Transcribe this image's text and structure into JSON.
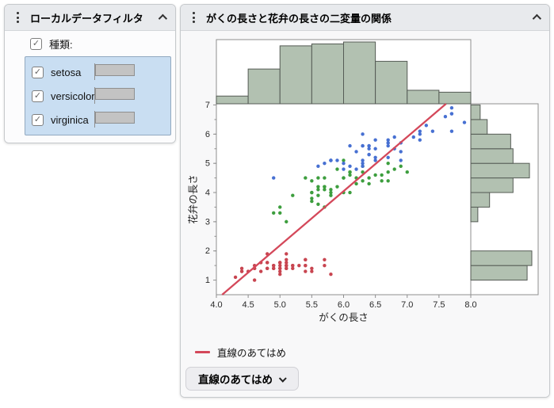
{
  "filter_panel": {
    "title": "ローカルデータフィルタ",
    "field": {
      "label": "種類:",
      "checked": true
    },
    "values": [
      {
        "label": "setosa",
        "checked": true,
        "count": 50
      },
      {
        "label": "versicolor",
        "checked": true,
        "count": 50
      },
      {
        "label": "virginica",
        "checked": true,
        "count": 50
      }
    ],
    "max_count": 50,
    "selection_color": "#c9def2"
  },
  "report_panel": {
    "title": "がくの長さと花弁の長さの二変量の関係",
    "legend": {
      "label": "直線のあてはめ",
      "color": "#d4485a"
    },
    "fit_button": {
      "label": "直線のあてはめ"
    }
  },
  "chart_data": {
    "type": "scatter",
    "title": "がくの長さと花弁の長さの二変量の関係",
    "xlabel": "がくの長さ",
    "ylabel": "花弁の長さ",
    "xlim": [
      4.0,
      8.0
    ],
    "ylim": [
      0.5,
      7.04
    ],
    "x_ticks": [
      4.0,
      4.5,
      5.0,
      5.5,
      6.0,
      6.5,
      7.0,
      7.5,
      8.0
    ],
    "y_ticks": [
      1,
      2,
      3,
      4,
      5,
      6,
      7
    ],
    "grid": false,
    "legend_position": "bottom-left",
    "frame_color": "#8f8f8f",
    "series": [
      {
        "name": "setosa",
        "color": "#c84550",
        "points": [
          [
            5.1,
            1.4
          ],
          [
            4.9,
            1.4
          ],
          [
            4.7,
            1.3
          ],
          [
            4.6,
            1.5
          ],
          [
            5.0,
            1.4
          ],
          [
            5.4,
            1.7
          ],
          [
            4.6,
            1.4
          ],
          [
            5.0,
            1.5
          ],
          [
            4.4,
            1.4
          ],
          [
            4.9,
            1.5
          ],
          [
            5.4,
            1.5
          ],
          [
            4.8,
            1.6
          ],
          [
            4.8,
            1.4
          ],
          [
            4.3,
            1.1
          ],
          [
            5.8,
            1.2
          ],
          [
            5.7,
            1.5
          ],
          [
            5.4,
            1.3
          ],
          [
            5.1,
            1.4
          ],
          [
            5.7,
            1.7
          ],
          [
            5.1,
            1.5
          ],
          [
            5.4,
            1.7
          ],
          [
            5.1,
            1.5
          ],
          [
            4.6,
            1.0
          ],
          [
            5.1,
            1.7
          ],
          [
            4.8,
            1.9
          ],
          [
            5.0,
            1.6
          ],
          [
            5.0,
            1.6
          ],
          [
            5.2,
            1.5
          ],
          [
            5.2,
            1.4
          ],
          [
            4.7,
            1.6
          ],
          [
            4.8,
            1.6
          ],
          [
            5.4,
            1.5
          ],
          [
            5.2,
            1.5
          ],
          [
            5.5,
            1.4
          ],
          [
            4.9,
            1.5
          ],
          [
            5.0,
            1.2
          ],
          [
            5.5,
            1.3
          ],
          [
            4.9,
            1.4
          ],
          [
            4.4,
            1.3
          ],
          [
            5.1,
            1.5
          ],
          [
            5.0,
            1.3
          ],
          [
            4.5,
            1.3
          ],
          [
            4.4,
            1.3
          ],
          [
            5.0,
            1.6
          ],
          [
            5.1,
            1.9
          ],
          [
            4.8,
            1.4
          ],
          [
            5.1,
            1.6
          ],
          [
            4.6,
            1.4
          ],
          [
            5.3,
            1.5
          ],
          [
            5.0,
            1.4
          ]
        ]
      },
      {
        "name": "versicolor",
        "color": "#3d9e3e",
        "points": [
          [
            7.0,
            4.7
          ],
          [
            6.4,
            4.5
          ],
          [
            6.9,
            4.9
          ],
          [
            5.5,
            4.0
          ],
          [
            6.5,
            4.6
          ],
          [
            5.7,
            4.5
          ],
          [
            6.3,
            4.7
          ],
          [
            4.9,
            3.3
          ],
          [
            6.6,
            4.6
          ],
          [
            5.2,
            3.9
          ],
          [
            5.0,
            3.5
          ],
          [
            5.9,
            4.2
          ],
          [
            6.0,
            4.0
          ],
          [
            6.1,
            4.7
          ],
          [
            5.6,
            3.6
          ],
          [
            6.7,
            4.4
          ],
          [
            5.6,
            4.5
          ],
          [
            5.8,
            4.1
          ],
          [
            6.2,
            4.5
          ],
          [
            5.6,
            3.9
          ],
          [
            5.9,
            4.8
          ],
          [
            6.1,
            4.0
          ],
          [
            6.3,
            4.9
          ],
          [
            6.1,
            4.7
          ],
          [
            6.4,
            4.3
          ],
          [
            6.6,
            4.4
          ],
          [
            6.8,
            4.8
          ],
          [
            6.7,
            5.0
          ],
          [
            6.0,
            4.5
          ],
          [
            5.7,
            3.5
          ],
          [
            5.5,
            3.8
          ],
          [
            5.5,
            3.7
          ],
          [
            5.8,
            3.9
          ],
          [
            6.0,
            5.1
          ],
          [
            5.4,
            4.5
          ],
          [
            6.0,
            4.5
          ],
          [
            6.7,
            4.7
          ],
          [
            6.3,
            4.4
          ],
          [
            5.6,
            4.1
          ],
          [
            5.5,
            4.0
          ],
          [
            5.5,
            4.4
          ],
          [
            6.1,
            4.6
          ],
          [
            5.8,
            4.0
          ],
          [
            5.0,
            3.3
          ],
          [
            5.6,
            4.2
          ],
          [
            5.7,
            4.2
          ],
          [
            5.7,
            4.2
          ],
          [
            6.2,
            4.3
          ],
          [
            5.1,
            3.0
          ],
          [
            5.7,
            4.1
          ]
        ]
      },
      {
        "name": "virginica",
        "color": "#4770d2",
        "points": [
          [
            6.3,
            6.0
          ],
          [
            5.8,
            5.1
          ],
          [
            7.1,
            5.9
          ],
          [
            6.3,
            5.6
          ],
          [
            6.5,
            5.8
          ],
          [
            7.6,
            6.6
          ],
          [
            4.9,
            4.5
          ],
          [
            7.3,
            6.3
          ],
          [
            6.7,
            5.8
          ],
          [
            7.2,
            6.1
          ],
          [
            6.5,
            5.1
          ],
          [
            6.4,
            5.3
          ],
          [
            6.8,
            5.5
          ],
          [
            5.7,
            5.0
          ],
          [
            5.8,
            5.1
          ],
          [
            6.4,
            5.3
          ],
          [
            6.5,
            5.5
          ],
          [
            7.7,
            6.7
          ],
          [
            7.7,
            6.9
          ],
          [
            6.0,
            5.0
          ],
          [
            6.9,
            5.7
          ],
          [
            5.6,
            4.9
          ],
          [
            7.7,
            6.7
          ],
          [
            6.3,
            4.9
          ],
          [
            6.7,
            5.7
          ],
          [
            7.2,
            6.0
          ],
          [
            6.2,
            4.8
          ],
          [
            6.1,
            4.9
          ],
          [
            6.4,
            5.6
          ],
          [
            7.2,
            5.8
          ],
          [
            7.4,
            6.1
          ],
          [
            7.9,
            6.4
          ],
          [
            6.4,
            5.6
          ],
          [
            6.3,
            5.1
          ],
          [
            6.1,
            5.6
          ],
          [
            7.7,
            6.1
          ],
          [
            6.3,
            5.6
          ],
          [
            6.4,
            5.5
          ],
          [
            6.0,
            4.8
          ],
          [
            6.9,
            5.4
          ],
          [
            6.7,
            5.6
          ],
          [
            6.9,
            5.1
          ],
          [
            5.8,
            5.1
          ],
          [
            6.8,
            5.9
          ],
          [
            6.7,
            5.7
          ],
          [
            6.7,
            5.2
          ],
          [
            6.3,
            5.0
          ],
          [
            6.5,
            5.2
          ],
          [
            6.2,
            5.4
          ],
          [
            5.9,
            5.1
          ]
        ]
      }
    ],
    "fit_line": {
      "label": "直線のあてはめ",
      "color": "#d4485a",
      "slope": 1.858,
      "intercept": -7.101
    },
    "histograms": {
      "top": {
        "variable": "がくの長さ",
        "bin_start": 4.0,
        "bin_width": 0.5,
        "counts": [
          4,
          18,
          30,
          31,
          32,
          22,
          7,
          6
        ],
        "fill": "#b2c1b1",
        "stroke": "#555b55"
      },
      "right": {
        "variable": "花弁の長さ",
        "bin_start": 1.0,
        "bin_width": 0.5,
        "counts": [
          24,
          26,
          0,
          0,
          3,
          8,
          18,
          25,
          18,
          17,
          7,
          4
        ],
        "fill": "#b2c1b1",
        "stroke": "#555b55"
      }
    }
  }
}
